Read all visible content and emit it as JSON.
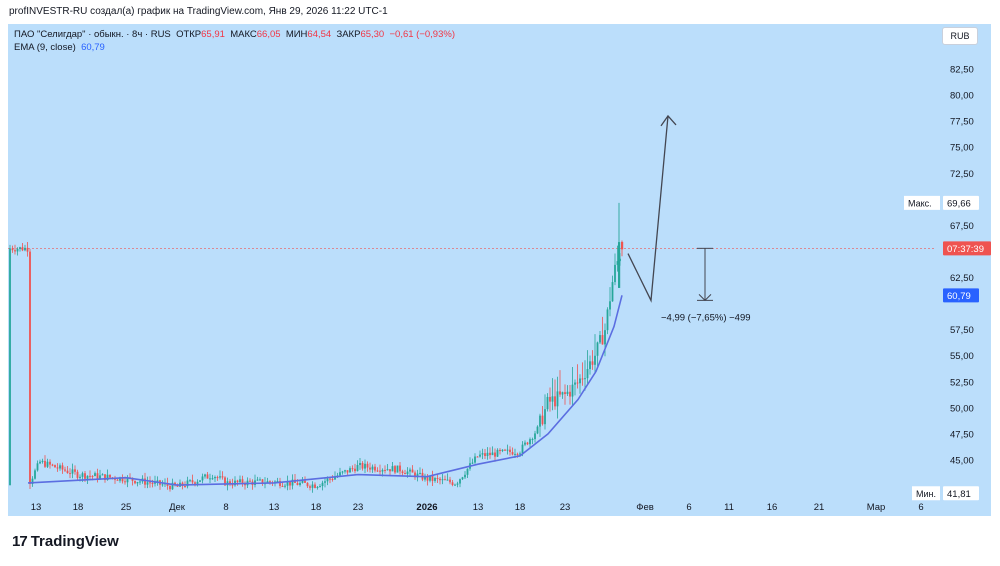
{
  "header": {
    "attribution": "profINVESTR-RU создал(а) график на TradingView.com, Янв 29, 2026 11:22 UTC-1"
  },
  "legend": {
    "symbol": "ПАО \"Селигдар\" · обыкн. · 8ч · RUS",
    "open_label": "ОТКР",
    "open_value": "65,91",
    "high_label": "МАКС",
    "high_value": "66,05",
    "low_label": "МИН",
    "low_value": "64,54",
    "close_label": "ЗАКР",
    "close_value": "65,30",
    "change": "−0,61 (−0,93%)",
    "ema_label": "EMA (9, close)",
    "ema_value": "60,79"
  },
  "currency": "RUB",
  "logo": {
    "mark": "17",
    "text": "TradingView"
  },
  "colors": {
    "panel_bg": "#bbdefb",
    "up": "#26a69a",
    "down": "#ef5350",
    "ema": "#5b6ee1",
    "axis_text": "#131722",
    "arrow": "#434651"
  },
  "chart_data": {
    "type": "candlestick",
    "title": "ПАО \"Селигдар\" · обыкн. · 8ч · RUS",
    "ylim": [
      41.81,
      85.0
    ],
    "y_ticks": [
      "82,50",
      "80,00",
      "77,50",
      "75,00",
      "72,50",
      "67,50",
      "62,50",
      "57,50",
      "55,00",
      "52,50",
      "50,00",
      "47,50",
      "45,00"
    ],
    "y_tick_values": [
      82.5,
      80.0,
      77.5,
      75.0,
      72.5,
      67.5,
      62.5,
      57.5,
      55.0,
      52.5,
      50.0,
      47.5,
      45.0
    ],
    "x_labels": [
      "13",
      "18",
      "25",
      "Дек",
      "8",
      "13",
      "18",
      "23",
      "2026",
      "13",
      "18",
      "23",
      "Фев",
      "6",
      "11",
      "16",
      "21",
      "Мар",
      "6"
    ],
    "x_bold": [
      "2026"
    ],
    "price_labels": [
      {
        "label": "",
        "text": "69,66",
        "value": 69.66,
        "kind": "max"
      },
      {
        "label": "",
        "text": "07:37:39",
        "value": 65.3,
        "kind": "current"
      },
      {
        "label": "",
        "text": "60,79",
        "value": 60.79,
        "kind": "ema"
      },
      {
        "label": "",
        "text": "41,81",
        "value": 41.81,
        "kind": "min"
      }
    ],
    "max_caption": "Макс.",
    "min_caption": "Мин.",
    "last_price": 65.3,
    "ema_last": 60.79,
    "ohlc_last": {
      "open": 65.91,
      "high": 66.05,
      "low": 64.54,
      "close": 65.3
    },
    "annotation": "−4,99 (−7,65%) −499",
    "measure_range": [
      65.3,
      60.31
    ],
    "forecast_path": [
      {
        "label": "start",
        "value": 64.8
      },
      {
        "label": "dip",
        "value": 60.3
      },
      {
        "label": "target",
        "value": 78.0
      }
    ],
    "price_path": [
      {
        "label": "13 ноя",
        "value": 42.6
      },
      {
        "label": "16 ноя",
        "value": 44.8
      },
      {
        "label": "18 ноя",
        "value": 43.6
      },
      {
        "label": "25 ноя",
        "value": 43.2
      },
      {
        "label": "Дек",
        "value": 42.4
      },
      {
        "label": "5 дек",
        "value": 43.6
      },
      {
        "label": "8 дек",
        "value": 42.8
      },
      {
        "label": "13 дек",
        "value": 42.9
      },
      {
        "label": "18 дек",
        "value": 42.6
      },
      {
        "label": "23 дек",
        "value": 44.4
      },
      {
        "label": "28 дек",
        "value": 44.1
      },
      {
        "label": "2026",
        "value": 43.2
      },
      {
        "label": "8 янв",
        "value": 42.8
      },
      {
        "label": "13 янв",
        "value": 45.4
      },
      {
        "label": "18 янв",
        "value": 45.9
      },
      {
        "label": "20 янв",
        "value": 48.0
      },
      {
        "label": "21 янв",
        "value": 50.5
      },
      {
        "label": "23 янв",
        "value": 51.2
      },
      {
        "label": "24 янв",
        "value": 52.4
      },
      {
        "label": "26 янв",
        "value": 55.2
      },
      {
        "label": "27 янв",
        "value": 57.5
      },
      {
        "label": "28 янв",
        "value": 63.0
      },
      {
        "label": "29 янв",
        "value": 65.3
      }
    ],
    "ema_path": [
      {
        "label": "13 ноя",
        "value": 42.8
      },
      {
        "label": "25 ноя",
        "value": 43.3
      },
      {
        "label": "Дек",
        "value": 42.6
      },
      {
        "label": "13 дек",
        "value": 42.8
      },
      {
        "label": "23 дек",
        "value": 43.6
      },
      {
        "label": "2026",
        "value": 43.4
      },
      {
        "label": "13 янв",
        "value": 44.6
      },
      {
        "label": "18 янв",
        "value": 45.4
      },
      {
        "label": "21 янв",
        "value": 47.5
      },
      {
        "label": "24 янв",
        "value": 50.8
      },
      {
        "label": "26 янв",
        "value": 53.5
      },
      {
        "label": "28 янв",
        "value": 57.8
      },
      {
        "label": "29 янв",
        "value": 60.79
      }
    ]
  }
}
